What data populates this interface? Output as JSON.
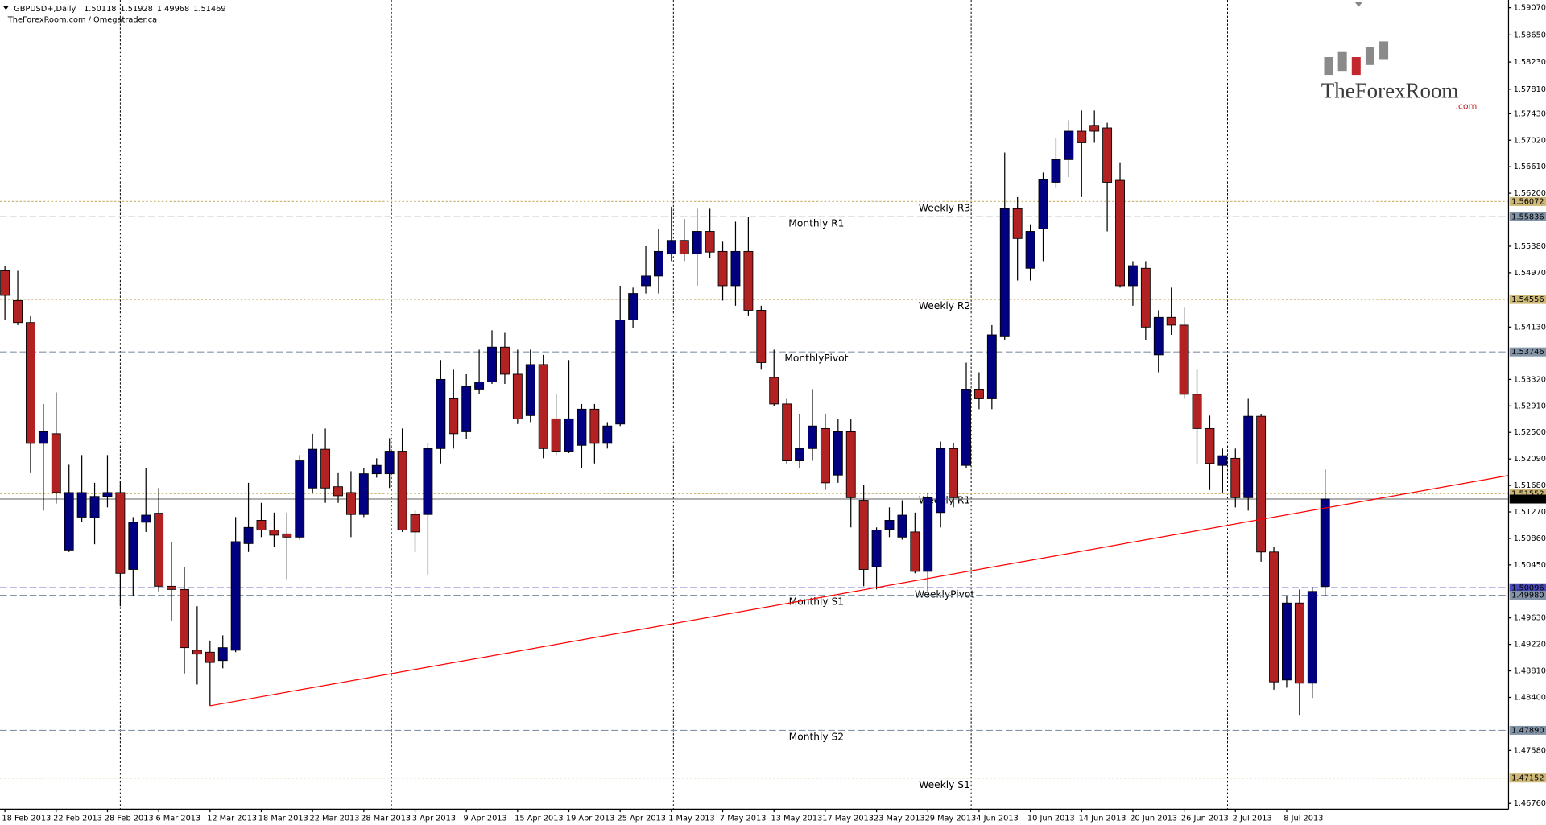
{
  "chart_data": {
    "type": "candlestick",
    "title": "GBPUSD+,Daily",
    "subtitle": "TheForexRoom.com / Omegatrader.ca",
    "logo": {
      "name": "TheForexRoom",
      "domain": ".com"
    },
    "up_color": "#000080",
    "down_color": "#b22222",
    "categories": [
      "18 Feb 2013",
      null,
      null,
      null,
      "22 Feb 2013",
      null,
      null,
      null,
      "28 Feb 2013",
      null,
      null,
      null,
      "6 Mar 2013",
      null,
      null,
      null,
      "12 Mar 2013",
      null,
      null,
      null,
      "18 Mar 2013",
      null,
      null,
      null,
      "22 Mar 2013",
      null,
      null,
      null,
      "28 Mar 2013",
      null,
      null,
      null,
      "3 Apr 2013",
      null,
      null,
      null,
      "9 Apr 2013",
      null,
      null,
      null,
      "15 Apr 2013",
      null,
      null,
      null,
      "19 Apr 2013",
      null,
      null,
      null,
      "25 Apr 2013",
      null,
      null,
      null,
      "1 May 2013",
      null,
      null,
      null,
      "7 May 2013",
      null,
      null,
      null,
      "13 May 2013",
      null,
      null,
      null,
      "17 May 2013",
      null,
      null,
      null,
      "23 May 2013",
      null,
      null,
      null,
      "29 May 2013",
      null,
      null,
      null,
      "4 Jun 2013",
      null,
      null,
      null,
      "10 Jun 2013",
      null,
      null,
      null,
      "14 Jun 2013",
      null,
      null,
      null,
      "20 Jun 2013",
      null,
      null,
      null,
      "26 Jun 2013",
      null,
      null,
      null,
      "2 Jul 2013",
      null,
      null,
      null,
      "8 Jul 2013",
      null,
      null,
      null
    ],
    "open": [
      1.55,
      1.5454,
      1.542,
      1.5233,
      1.5248,
      1.5068,
      1.5119,
      1.5118,
      1.5151,
      1.5157,
      1.5038,
      1.5111,
      1.5125,
      1.5012,
      1.5007,
      1.4913,
      1.491,
      1.4897,
      1.4913,
      1.5078,
      1.5114,
      1.5099,
      1.5093,
      1.5088,
      1.5164,
      1.5224,
      1.5166,
      1.5157,
      1.5123,
      1.5186,
      1.5186,
      1.5221,
      1.5123,
      1.5123,
      1.5225,
      1.5302,
      1.5251,
      1.5317,
      1.5328,
      1.5382,
      1.534,
      1.5276,
      1.5355,
      1.5271,
      1.5221,
      1.523,
      1.5286,
      1.5233,
      1.5263,
      1.5424,
      1.5477,
      1.5492,
      1.5526,
      1.5547,
      1.5526,
      1.5561,
      1.553,
      1.5477,
      1.553,
      1.5439,
      1.5335,
      1.5294,
      1.5206,
      1.5225,
      1.5256,
      1.5184,
      1.5251,
      1.5145,
      1.5042,
      1.51,
      1.5088,
      1.5096,
      1.5035,
      1.5126,
      1.5225,
      1.5199,
      1.5317,
      1.5302,
      1.5398,
      1.5596,
      1.5504,
      1.5565,
      1.5637,
      1.5672,
      1.5716,
      1.5725,
      1.5721,
      1.564,
      1.5477,
      1.5504,
      1.537,
      1.5428,
      1.5416,
      1.5309,
      1.5256,
      1.5199,
      1.521,
      1.5149,
      1.5275,
      1.5065,
      1.4867,
      1.4986,
      1.4862,
      1.50118
    ],
    "high": [
      1.5507,
      1.55,
      1.543,
      1.5294,
      1.5312,
      1.52,
      1.5215,
      1.5172,
      1.5215,
      1.5175,
      1.5119,
      1.5195,
      1.5164,
      1.5081,
      1.5042,
      1.4981,
      1.4928,
      1.4936,
      1.5119,
      1.5172,
      1.5141,
      1.5126,
      1.5126,
      1.5215,
      1.5248,
      1.5256,
      1.5187,
      1.519,
      1.5195,
      1.521,
      1.5241,
      1.5256,
      1.5129,
      1.5233,
      1.5362,
      1.5347,
      1.534,
      1.5378,
      1.5408,
      1.5404,
      1.5378,
      1.5378,
      1.537,
      1.5309,
      1.5362,
      1.5294,
      1.5294,
      1.5266,
      1.5477,
      1.5474,
      1.5538,
      1.5565,
      1.5599,
      1.558,
      1.5596,
      1.5596,
      1.5545,
      1.5576,
      1.5584,
      1.5446,
      1.5378,
      1.5302,
      1.5279,
      1.5317,
      1.5279,
      1.5271,
      1.5271,
      1.5169,
      1.5103,
      1.5134,
      1.5145,
      1.5126,
      1.5157,
      1.5236,
      1.5233,
      1.5358,
      1.5343,
      1.5416,
      1.5683,
      1.5614,
      1.5572,
      1.5652,
      1.5706,
      1.5733,
      1.5748,
      1.5748,
      1.5729,
      1.5668,
      1.5515,
      1.5515,
      1.5439,
      1.5474,
      1.5443,
      1.5347,
      1.5276,
      1.5225,
      1.5225,
      1.5302,
      1.5279,
      1.5073,
      1.4997,
      1.5007,
      1.5011,
      1.51928
    ],
    "low": [
      1.5424,
      1.5416,
      1.5187,
      1.5129,
      1.514,
      1.5065,
      1.5111,
      1.5077,
      1.5134,
      1.4981,
      1.4997,
      1.5096,
      1.5004,
      1.4959,
      1.4877,
      1.486,
      1.4827,
      1.4885,
      1.491,
      1.5065,
      1.5088,
      1.5073,
      1.5023,
      1.5084,
      1.5157,
      1.5141,
      1.5141,
      1.5088,
      1.5119,
      1.518,
      1.5164,
      1.5096,
      1.5065,
      1.503,
      1.5202,
      1.5225,
      1.524,
      1.5309,
      1.5325,
      1.5325,
      1.5263,
      1.5266,
      1.521,
      1.5215,
      1.5218,
      1.5195,
      1.5202,
      1.5225,
      1.526,
      1.5412,
      1.5465,
      1.5465,
      1.5515,
      1.5515,
      1.5477,
      1.552,
      1.5454,
      1.5446,
      1.5431,
      1.5347,
      1.5291,
      1.5202,
      1.5195,
      1.5206,
      1.5161,
      1.5172,
      1.5103,
      1.5012,
      1.5007,
      1.5088,
      1.5084,
      1.5032,
      1.5004,
      1.5103,
      1.5134,
      1.5195,
      1.5286,
      1.5286,
      1.5393,
      1.5485,
      1.5485,
      1.5515,
      1.5629,
      1.5645,
      1.5614,
      1.5698,
      1.5561,
      1.5474,
      1.5446,
      1.5393,
      1.5343,
      1.5401,
      1.5302,
      1.5202,
      1.5161,
      1.5157,
      1.5134,
      1.5129,
      1.505,
      1.4852,
      1.4855,
      1.4813,
      1.4839,
      1.49968
    ],
    "close": [
      1.5462,
      1.542,
      1.5233,
      1.5251,
      1.5157,
      1.5157,
      1.5157,
      1.5151,
      1.5157,
      1.5032,
      1.5111,
      1.5122,
      1.5012,
      1.5007,
      1.4917,
      1.4907,
      1.4894,
      1.4917,
      1.5081,
      1.5103,
      1.5099,
      1.5091,
      1.5088,
      1.5206,
      1.5224,
      1.5164,
      1.5152,
      1.5123,
      1.5186,
      1.5199,
      1.5221,
      1.5099,
      1.5096,
      1.5225,
      1.5332,
      1.5248,
      1.5321,
      1.5328,
      1.5382,
      1.534,
      1.5271,
      1.5355,
      1.5225,
      1.5221,
      1.5271,
      1.5286,
      1.5233,
      1.526,
      1.5424,
      1.5465,
      1.5492,
      1.553,
      1.5547,
      1.5526,
      1.5561,
      1.5529,
      1.5477,
      1.553,
      1.5439,
      1.5358,
      1.5294,
      1.5206,
      1.5225,
      1.526,
      1.5172,
      1.5251,
      1.5149,
      1.5038,
      1.5099,
      1.5114,
      1.5122,
      1.5035,
      1.5149,
      1.5225,
      1.5149,
      1.5317,
      1.5302,
      1.5401,
      1.5596,
      1.555,
      1.5561,
      1.5641,
      1.5672,
      1.5716,
      1.5698,
      1.5716,
      1.5637,
      1.5477,
      1.5508,
      1.5413,
      1.5428,
      1.5416,
      1.5309,
      1.5256,
      1.5202,
      1.5214,
      1.5149,
      1.5275,
      1.5065,
      1.4864,
      1.4986,
      1.4862,
      1.5004,
      1.51469
    ],
    "ylim": [
      1.4667,
      1.5919
    ],
    "yticks": [
      {
        "value": 1.5907,
        "label": "1.59070"
      },
      {
        "value": 1.5865,
        "label": "1.58650"
      },
      {
        "value": 1.5823,
        "label": "1.58230"
      },
      {
        "value": 1.5781,
        "label": "1.57810"
      },
      {
        "value": 1.5743,
        "label": "1.57430"
      },
      {
        "value": 1.5702,
        "label": "1.57020"
      },
      {
        "value": 1.5661,
        "label": "1.56610"
      },
      {
        "value": 1.562,
        "label": "1.56200"
      },
      {
        "value": 1.5538,
        "label": "1.55380"
      },
      {
        "value": 1.5497,
        "label": "1.54970"
      },
      {
        "value": 1.5413,
        "label": "1.54130"
      },
      {
        "value": 1.5332,
        "label": "1.53320"
      },
      {
        "value": 1.5291,
        "label": "1.52910"
      },
      {
        "value": 1.525,
        "label": "1.52500"
      },
      {
        "value": 1.5209,
        "label": "1.52090"
      },
      {
        "value": 1.5168,
        "label": "1.51680"
      },
      {
        "value": 1.5127,
        "label": "1.51270"
      },
      {
        "value": 1.5086,
        "label": "1.50860"
      },
      {
        "value": 1.5045,
        "label": "1.50450"
      },
      {
        "value": 1.4963,
        "label": "1.49630"
      },
      {
        "value": 1.4922,
        "label": "1.49220"
      },
      {
        "value": 1.4881,
        "label": "1.48810"
      },
      {
        "value": 1.484,
        "label": "1.48400"
      },
      {
        "value": 1.4758,
        "label": "1.47580"
      },
      {
        "value": 1.4676,
        "label": "1.46760"
      }
    ],
    "levels": [
      {
        "name": "Weekly R3",
        "value": 1.56072,
        "label": "1.56072",
        "color": "#cdb878",
        "style": "dotted"
      },
      {
        "name": "Monthly R1",
        "value": 1.55836,
        "label": "1.55836",
        "color": "#8494a8",
        "style": "dashed"
      },
      {
        "name": "Weekly R2",
        "value": 1.54556,
        "label": "1.54556",
        "color": "#cdb878",
        "style": "dotted"
      },
      {
        "name": "MonthlyPivot",
        "value": 1.53746,
        "label": "1.53746",
        "color": "#8494a8",
        "style": "dashed"
      },
      {
        "name": "Weekly R1",
        "value": 1.51552,
        "label": "1.51552",
        "color": "#cdb878",
        "style": "dotted"
      },
      {
        "name": "WeeklyPivot",
        "value": 1.50096,
        "label": "1.50096",
        "color": "#4848b8",
        "style": "dashed"
      },
      {
        "name": "Monthly S1",
        "value": 1.4998,
        "label": "1.49980",
        "color": "#8494a8",
        "style": "dashed"
      },
      {
        "name": "Monthly S2",
        "value": 1.4789,
        "label": "1.47890",
        "color": "#8494a8",
        "style": "dashed"
      },
      {
        "name": "Weekly S1",
        "value": 1.47152,
        "label": "1.47152",
        "color": "#cdb878",
        "style": "dotted"
      }
    ],
    "trendline": {
      "color": "#ff0000",
      "points": [
        {
          "x": "12 Mar 2013",
          "y": 1.4827
        },
        {
          "x": "29 May 2013",
          "y": 1.5024
        }
      ]
    }
  }
}
